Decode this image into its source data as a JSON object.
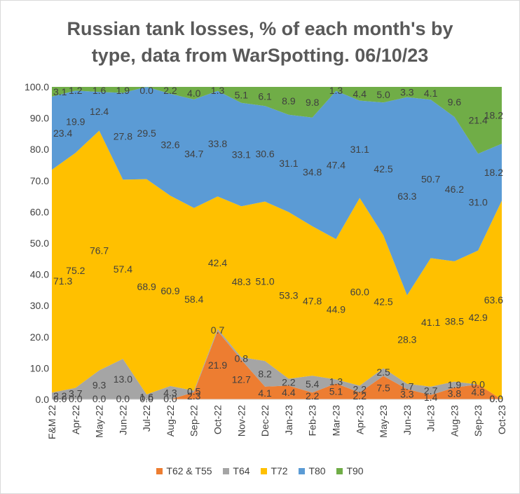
{
  "chart_data": {
    "type": "area",
    "stacked": true,
    "title_line1": "Russian tank losses, % of each month's by",
    "title_line2": "type, data from WarSpotting. 06/10/23",
    "categories": [
      "F&M 22",
      "Apr-22",
      "May-22",
      "Jun-22",
      "Jul-22",
      "Aug-22",
      "Sep-22",
      "Oct-22",
      "Nov-22",
      "Dec-22",
      "Jan-23",
      "Feb-23",
      "Mar-23",
      "Apr-23",
      "May-23",
      "Jun-23",
      "Jul-23",
      "Aug-23",
      "Sep-23",
      "Oct-23"
    ],
    "ylim": [
      0,
      100
    ],
    "y_ticks": [
      "0.0",
      "10.0",
      "20.0",
      "30.0",
      "40.0",
      "50.0",
      "60.0",
      "70.0",
      "80.0",
      "90.0",
      "100.0"
    ],
    "legend_position": "bottom",
    "series": [
      {
        "name": "T62 & T55",
        "color": "#ed7d31",
        "values": [
          0.0,
          0.0,
          0.0,
          0.0,
          0.0,
          0.0,
          2.3,
          21.9,
          12.7,
          4.1,
          4.4,
          2.2,
          5.1,
          2.2,
          7.5,
          3.3,
          1.4,
          3.8,
          4.8,
          0.0
        ],
        "labels": [
          "0.0",
          "0.0",
          "0.0",
          "0.0",
          "0.0",
          "0.0",
          "2.3",
          "21.9",
          "12.7",
          "4.1",
          "4.4",
          "2.2",
          "5.1",
          "2.2",
          "7.5",
          "3.3",
          "1.4",
          "3.8",
          "4.8",
          "0.0"
        ]
      },
      {
        "name": "T64",
        "color": "#a5a5a5",
        "values": [
          2.2,
          3.7,
          9.3,
          13.0,
          1.6,
          4.3,
          0.5,
          0.7,
          0.8,
          8.2,
          2.2,
          5.4,
          1.3,
          2.2,
          2.5,
          1.7,
          2.7,
          1.9,
          0.0,
          0.0
        ],
        "labels": [
          "2.2",
          "3.7",
          "9.3",
          "13.0",
          "1.6",
          "4.3",
          "0.5",
          "0.7",
          "0.8",
          "8.2",
          "2.2",
          "5.4",
          "1.3",
          "2.2",
          "2.5",
          "1.7",
          "2.7",
          "1.9",
          "0.0",
          "0.0"
        ]
      },
      {
        "name": "T72",
        "color": "#ffc000",
        "values": [
          71.3,
          75.2,
          76.7,
          57.4,
          68.9,
          60.9,
          58.4,
          42.4,
          48.3,
          51.0,
          53.3,
          47.8,
          44.9,
          60.0,
          42.5,
          28.3,
          41.1,
          38.5,
          42.9,
          63.6
        ],
        "labels": [
          "71.3",
          "75.2",
          "76.7",
          "57.4",
          "68.9",
          "60.9",
          "58.4",
          "42.4",
          "48.3",
          "51.0",
          "53.3",
          "47.8",
          "44.9",
          "60.0",
          "42.5",
          "28.3",
          "41.1",
          "38.5",
          "42.9",
          "63.6"
        ]
      },
      {
        "name": "T80",
        "color": "#5b9bd5",
        "values": [
          23.4,
          19.9,
          12.4,
          27.8,
          29.5,
          32.6,
          34.7,
          33.8,
          33.1,
          30.6,
          31.1,
          34.8,
          47.4,
          31.1,
          42.5,
          63.3,
          50.7,
          46.2,
          31.0,
          18.2
        ],
        "labels": [
          "23.4",
          "19.9",
          "12.4",
          "27.8",
          "29.5",
          "32.6",
          "34.7",
          "33.8",
          "33.1",
          "30.6",
          "31.1",
          "34.8",
          "47.4",
          "31.1",
          "42.5",
          "63.3",
          "50.7",
          "46.2",
          "31.0",
          "18.2"
        ]
      },
      {
        "name": "T90",
        "color": "#70ad47",
        "values": [
          3.1,
          1.2,
          1.6,
          1.9,
          0.0,
          2.2,
          4.0,
          1.3,
          5.1,
          6.1,
          8.9,
          9.8,
          1.3,
          4.4,
          5.0,
          3.3,
          4.1,
          9.6,
          21.4,
          18.2
        ],
        "labels": [
          "3.1",
          "1.2",
          "1.6",
          "1.9",
          "0.0",
          "2.2",
          "4.0",
          "1.3",
          "5.1",
          "6.1",
          "8.9",
          "9.8",
          "1.3",
          "4.4",
          "5.0",
          "3.3",
          "4.1",
          "9.6",
          "21.4",
          "18.2"
        ]
      }
    ]
  }
}
